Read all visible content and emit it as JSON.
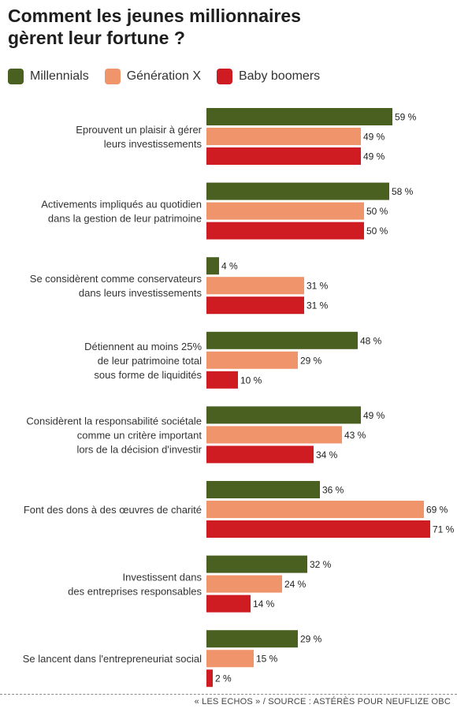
{
  "title": "Comment les jeunes millionnaires\ngèrent leur fortune ?",
  "source": "« LES ECHOS » / SOURCE : ASTÉRÈS POUR NEUFLIZE OBC",
  "colors": {
    "millennials": "#4a6020",
    "generation_x": "#f0956b",
    "baby_boomers": "#cf1b22"
  },
  "chart_data": {
    "type": "bar",
    "orientation": "horizontal",
    "legend_position": "top-left",
    "value_suffix": " %",
    "categories": [
      "Eprouvent un plaisir à gérer\nleurs investissements",
      "Activements impliqués au quotidien\ndans la gestion de leur patrimoine",
      "Se considèrent comme conservateurs\ndans leurs investissements",
      "Détiennent au moins 25%\nde leur patrimoine total\nsous forme de liquidités",
      "Considèrent la responsabilité sociétale\ncomme un critère important\nlors de la décision d'investir",
      "Font des dons à des œuvres de charité",
      "Investissent dans\ndes entreprises responsables",
      "Se lancent dans l'entrepreneuriat social"
    ],
    "series": [
      {
        "name": "Millennials",
        "values": [
          59,
          58,
          4,
          48,
          49,
          36,
          32,
          29
        ]
      },
      {
        "name": "Génération X",
        "values": [
          49,
          50,
          31,
          29,
          43,
          69,
          24,
          15
        ]
      },
      {
        "name": "Baby boomers",
        "values": [
          49,
          50,
          31,
          10,
          34,
          71,
          14,
          2
        ]
      }
    ]
  }
}
